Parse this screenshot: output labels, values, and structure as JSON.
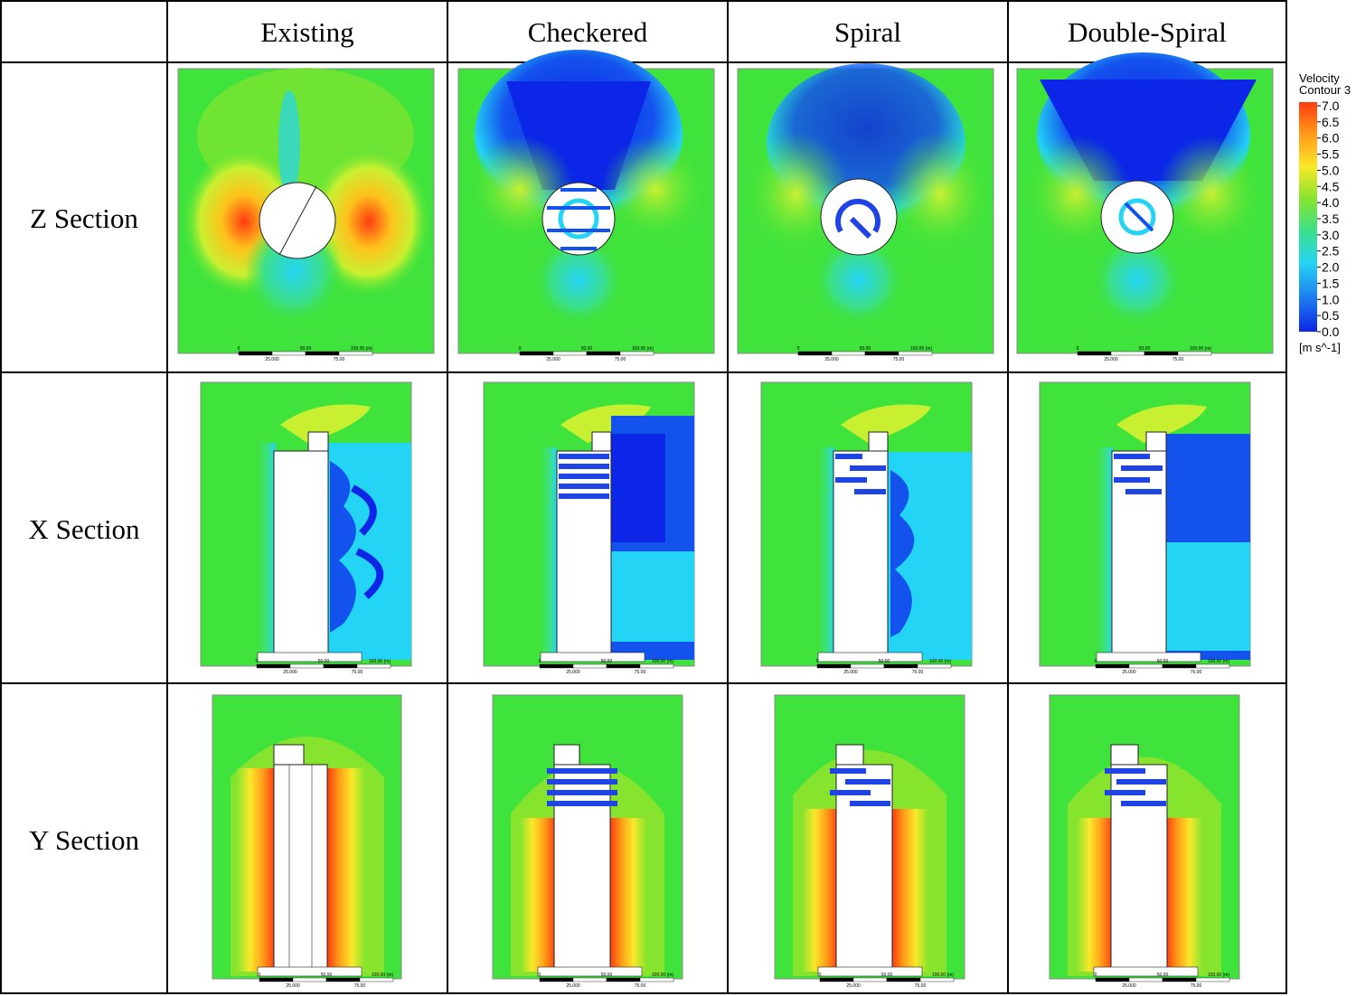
{
  "columns": [
    "Existing",
    "Checkered",
    "Spiral",
    "Double-Spiral"
  ],
  "rows": [
    "Z Section",
    "X Section",
    "Y Section"
  ],
  "legend": {
    "title_line1": "Velocity",
    "title_line2": "Contour 3",
    "unit": "[m s^-1]",
    "ticks": [
      "7.0",
      "6.5",
      "6.0",
      "5.5",
      "5.0",
      "4.5",
      "4.0",
      "3.5",
      "3.0",
      "2.5",
      "2.0",
      "1.5",
      "1.0",
      "0.5",
      "0.0"
    ],
    "colors": [
      "#ff3b10",
      "#ff6a12",
      "#ff9a18",
      "#ffc21c",
      "#fbe82a",
      "#c9f030",
      "#86e42e",
      "#4ce83c",
      "#3ce08a",
      "#2fe0c6",
      "#24d4f4",
      "#1aaaf2",
      "#1e7ef0",
      "#1452ee",
      "#0b26e6"
    ]
  },
  "scale_bar": {
    "top": [
      "0",
      "50.00",
      "100.00  (m)"
    ],
    "bottom": [
      "25.000",
      "75.00"
    ]
  },
  "colors": {
    "field": "#3fe33c",
    "high": "#ff3b10",
    "mid": "#fbe82a",
    "low": "#0b26e6",
    "cyan": "#24d4f4"
  }
}
